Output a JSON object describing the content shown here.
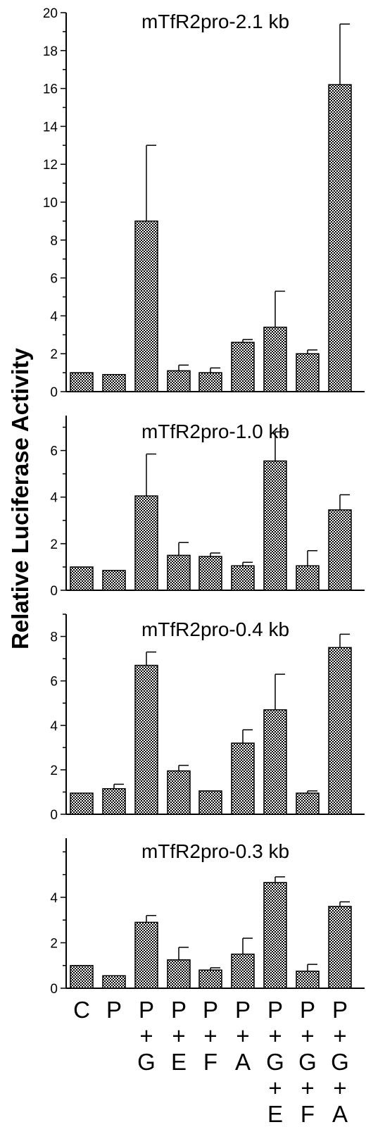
{
  "chart_data": {
    "type": "bar",
    "ylabel": "Relative Luciferase Activity",
    "category_labels": [
      [
        "C"
      ],
      [
        "P"
      ],
      [
        "P",
        "+",
        "G"
      ],
      [
        "P",
        "+",
        "E"
      ],
      [
        "P",
        "+",
        "F"
      ],
      [
        "P",
        "+",
        "A"
      ],
      [
        "P",
        "+",
        "G",
        "+",
        "E"
      ],
      [
        "P",
        "+",
        "G",
        "+",
        "F"
      ],
      [
        "P",
        "+",
        "G",
        "+",
        "A"
      ]
    ],
    "panels": [
      {
        "title": "mTfR2pro-2.1 kb",
        "ylim": [
          0,
          20
        ],
        "yticks": [
          0,
          2,
          4,
          6,
          8,
          10,
          12,
          14,
          16,
          18,
          20
        ],
        "values": [
          1.0,
          0.9,
          9.0,
          1.1,
          1.0,
          2.6,
          3.4,
          2.0,
          16.2
        ],
        "errors": [
          0.0,
          0.0,
          4.0,
          0.3,
          0.25,
          0.15,
          1.9,
          0.2,
          3.2
        ]
      },
      {
        "title": "mTfR2pro-1.0 kb",
        "ylim": [
          0,
          7.5
        ],
        "yticks": [
          0,
          2,
          4,
          6
        ],
        "values": [
          1.0,
          0.85,
          4.05,
          1.5,
          1.45,
          1.05,
          5.55,
          1.05,
          3.45
        ],
        "errors": [
          0.0,
          0.0,
          1.8,
          0.55,
          0.15,
          0.15,
          1.25,
          0.65,
          0.65
        ]
      },
      {
        "title": "mTfR2pro-0.4 kb",
        "ylim": [
          0,
          9
        ],
        "yticks": [
          0,
          2,
          4,
          6,
          8
        ],
        "values": [
          0.95,
          1.15,
          6.7,
          1.95,
          1.05,
          3.2,
          4.7,
          0.95,
          7.5
        ],
        "errors": [
          0.0,
          0.2,
          0.6,
          0.25,
          0.0,
          0.6,
          1.6,
          0.1,
          0.6
        ]
      },
      {
        "title": "mTfR2pro-0.3 kb",
        "ylim": [
          0,
          6.6
        ],
        "yticks": [
          0,
          2,
          4
        ],
        "values": [
          1.0,
          0.55,
          2.9,
          1.25,
          0.8,
          1.5,
          4.65,
          0.75,
          3.6
        ],
        "errors": [
          0.0,
          0.0,
          0.3,
          0.55,
          0.1,
          0.7,
          0.25,
          0.3,
          0.2
        ]
      }
    ]
  }
}
